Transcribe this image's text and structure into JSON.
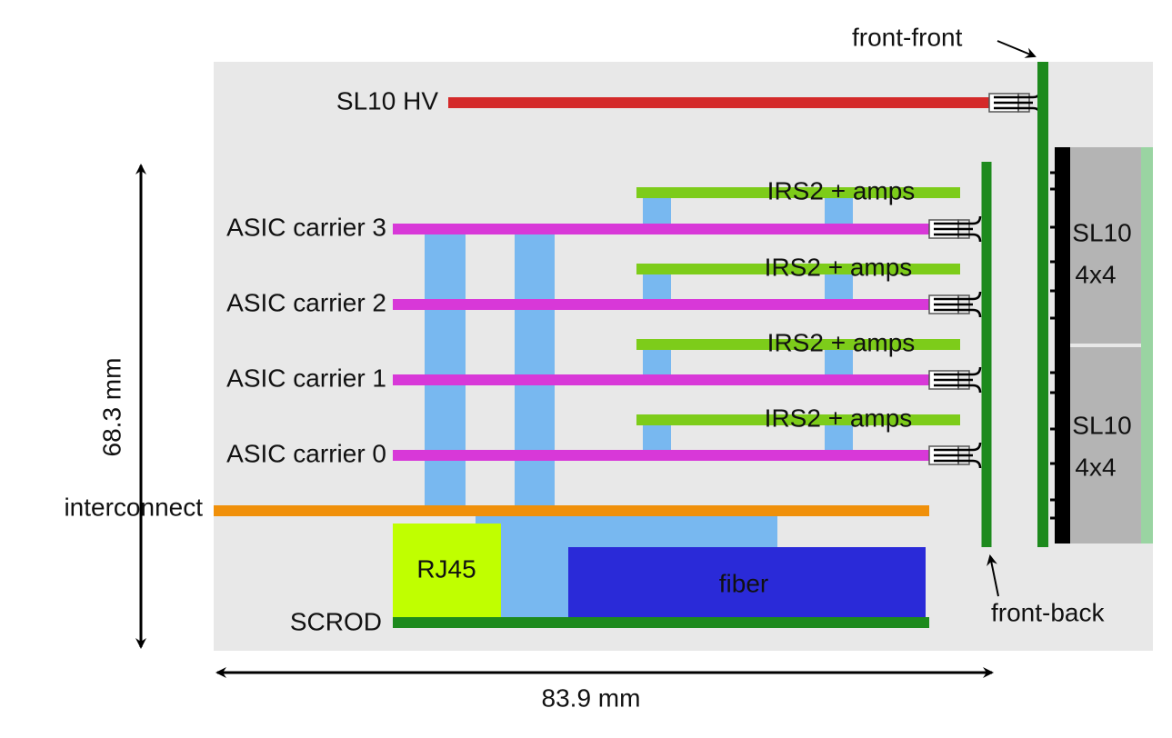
{
  "labels": {
    "front_front": "front-front",
    "front_back": "front-back",
    "sl10_hv": "SL10 HV",
    "interconnect": "interconnect",
    "scrod": "SCROD",
    "rj45": "RJ45",
    "fiber": "fiber"
  },
  "asic_carriers": [
    "ASIC carrier 3",
    "ASIC carrier 2",
    "ASIC carrier 1",
    "ASIC carrier 0"
  ],
  "irs2": [
    "IRS2 + amps",
    "IRS2 + amps",
    "IRS2 + amps",
    "IRS2 + amps"
  ],
  "sl10_modules": [
    {
      "name": "SL10",
      "size": "4x4"
    },
    {
      "name": "SL10",
      "size": "4x4"
    }
  ],
  "dimensions": {
    "height": "68.3 mm",
    "width": "83.9 mm"
  }
}
